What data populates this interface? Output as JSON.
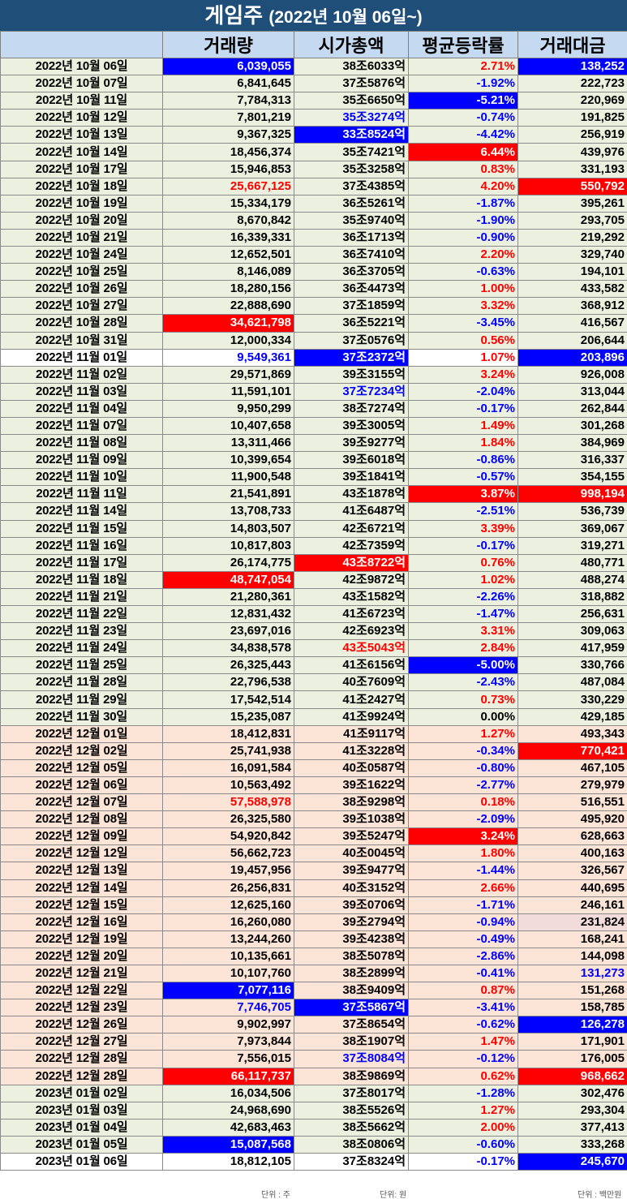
{
  "title": {
    "main": "게임주",
    "sub": "(2022년 10월 06일~)"
  },
  "headers": [
    "",
    "거래량",
    "시가총액",
    "평균등락률",
    "거래대금"
  ],
  "rows": [
    {
      "date": "2022년 10월 06일",
      "volume": "6,039,055",
      "mcap": "38조6033억",
      "change": "2.71%",
      "value": "138,252",
      "group": "oct",
      "vs": "hl-blue",
      "ms": "",
      "cs": "red-text",
      "ts": "hl-blue"
    },
    {
      "date": "2022년 10월 07일",
      "volume": "6,841,645",
      "mcap": "37조5876억",
      "change": "-1.92%",
      "value": "222,723",
      "group": "oct",
      "vs": "",
      "ms": "",
      "cs": "blue-text",
      "ts": ""
    },
    {
      "date": "2022년 10월 11일",
      "volume": "7,784,313",
      "mcap": "35조6650억",
      "change": "-5.21%",
      "value": "220,969",
      "group": "oct",
      "vs": "",
      "ms": "",
      "cs": "hl-blue",
      "ts": ""
    },
    {
      "date": "2022년 10월 12일",
      "volume": "7,801,219",
      "mcap": "35조3274억",
      "change": "-0.74%",
      "value": "191,825",
      "group": "oct",
      "vs": "",
      "ms": "blue-text",
      "cs": "blue-text",
      "ts": ""
    },
    {
      "date": "2022년 10월 13일",
      "volume": "9,367,325",
      "mcap": "33조8524억",
      "change": "-4.42%",
      "value": "256,919",
      "group": "oct",
      "vs": "",
      "ms": "hl-blue",
      "cs": "blue-text",
      "ts": ""
    },
    {
      "date": "2022년 10월 14일",
      "volume": "18,456,374",
      "mcap": "35조7421억",
      "change": "6.44%",
      "value": "439,976",
      "group": "oct",
      "vs": "",
      "ms": "",
      "cs": "hl-red",
      "ts": ""
    },
    {
      "date": "2022년 10월 17일",
      "volume": "15,946,853",
      "mcap": "35조3258억",
      "change": "0.83%",
      "value": "331,193",
      "group": "oct",
      "vs": "",
      "ms": "",
      "cs": "red-text",
      "ts": ""
    },
    {
      "date": "2022년 10월 18일",
      "volume": "25,667,125",
      "mcap": "37조4385억",
      "change": "4.20%",
      "value": "550,792",
      "group": "oct",
      "vs": "red-text",
      "ms": "",
      "cs": "red-text",
      "ts": "hl-red"
    },
    {
      "date": "2022년 10월 19일",
      "volume": "15,334,179",
      "mcap": "36조5261억",
      "change": "-1.87%",
      "value": "395,261",
      "group": "oct",
      "vs": "",
      "ms": "",
      "cs": "blue-text",
      "ts": ""
    },
    {
      "date": "2022년 10월 20일",
      "volume": "8,670,842",
      "mcap": "35조9740억",
      "change": "-1.90%",
      "value": "293,705",
      "group": "oct",
      "vs": "",
      "ms": "",
      "cs": "blue-text",
      "ts": ""
    },
    {
      "date": "2022년 10월 21일",
      "volume": "16,339,331",
      "mcap": "36조1713억",
      "change": "-0.90%",
      "value": "219,292",
      "group": "oct",
      "vs": "",
      "ms": "",
      "cs": "blue-text",
      "ts": ""
    },
    {
      "date": "2022년 10월 24일",
      "volume": "12,652,501",
      "mcap": "36조7410억",
      "change": "2.20%",
      "value": "329,740",
      "group": "oct",
      "vs": "",
      "ms": "",
      "cs": "red-text",
      "ts": ""
    },
    {
      "date": "2022년 10월 25일",
      "volume": "8,146,089",
      "mcap": "36조3705억",
      "change": "-0.63%",
      "value": "194,101",
      "group": "oct",
      "vs": "",
      "ms": "",
      "cs": "blue-text",
      "ts": ""
    },
    {
      "date": "2022년 10월 26일",
      "volume": "18,280,156",
      "mcap": "36조4473억",
      "change": "1.00%",
      "value": "433,582",
      "group": "oct",
      "vs": "",
      "ms": "",
      "cs": "red-text",
      "ts": ""
    },
    {
      "date": "2022년 10월 27일",
      "volume": "22,888,690",
      "mcap": "37조1859억",
      "change": "3.32%",
      "value": "368,912",
      "group": "oct",
      "vs": "",
      "ms": "",
      "cs": "red-text",
      "ts": ""
    },
    {
      "date": "2022년 10월 28일",
      "volume": "34,621,798",
      "mcap": "36조5221억",
      "change": "-3.45%",
      "value": "416,567",
      "group": "oct",
      "vs": "hl-red",
      "ms": "",
      "cs": "blue-text",
      "ts": ""
    },
    {
      "date": "2022년 10월 31일",
      "volume": "12,000,334",
      "mcap": "37조0576억",
      "change": "0.56%",
      "value": "206,644",
      "group": "oct",
      "vs": "",
      "ms": "",
      "cs": "red-text",
      "ts": ""
    },
    {
      "date": "2022년 11월 01일",
      "volume": "9,549,361",
      "mcap": "37조2372억",
      "change": "1.07%",
      "value": "203,896",
      "group": "white",
      "vs": "blue-text",
      "ms": "hl-blue",
      "cs": "red-text",
      "ts": "hl-blue"
    },
    {
      "date": "2022년 11월 02일",
      "volume": "29,571,869",
      "mcap": "39조3155억",
      "change": "3.24%",
      "value": "926,008",
      "group": "nov",
      "vs": "",
      "ms": "",
      "cs": "red-text",
      "ts": ""
    },
    {
      "date": "2022년 11월 03일",
      "volume": "11,591,101",
      "mcap": "37조7234억",
      "change": "-2.04%",
      "value": "313,044",
      "group": "nov",
      "vs": "",
      "ms": "blue-text",
      "cs": "blue-text",
      "ts": ""
    },
    {
      "date": "2022년 11월 04일",
      "volume": "9,950,299",
      "mcap": "38조7274억",
      "change": "-0.17%",
      "value": "262,844",
      "group": "nov",
      "vs": "",
      "ms": "",
      "cs": "blue-text",
      "ts": ""
    },
    {
      "date": "2022년 11월 07일",
      "volume": "10,407,658",
      "mcap": "39조3005억",
      "change": "1.49%",
      "value": "301,268",
      "group": "nov",
      "vs": "",
      "ms": "",
      "cs": "red-text",
      "ts": ""
    },
    {
      "date": "2022년 11월 08일",
      "volume": "13,311,466",
      "mcap": "39조9277억",
      "change": "1.84%",
      "value": "384,969",
      "group": "nov",
      "vs": "",
      "ms": "",
      "cs": "red-text",
      "ts": ""
    },
    {
      "date": "2022년 11월 09일",
      "volume": "10,399,654",
      "mcap": "39조6018억",
      "change": "-0.86%",
      "value": "316,337",
      "group": "nov",
      "vs": "",
      "ms": "",
      "cs": "blue-text",
      "ts": ""
    },
    {
      "date": "2022년 11월 10일",
      "volume": "11,900,548",
      "mcap": "39조1841억",
      "change": "-0.57%",
      "value": "354,155",
      "group": "nov",
      "vs": "",
      "ms": "",
      "cs": "blue-text",
      "ts": ""
    },
    {
      "date": "2022년 11월 11일",
      "volume": "21,541,891",
      "mcap": "43조1878억",
      "change": "3.87%",
      "value": "998,194",
      "group": "nov",
      "vs": "",
      "ms": "",
      "cs": "hl-red",
      "ts": "hl-red"
    },
    {
      "date": "2022년 11월 14일",
      "volume": "13,708,733",
      "mcap": "41조6487억",
      "change": "-2.51%",
      "value": "536,739",
      "group": "nov",
      "vs": "",
      "ms": "",
      "cs": "blue-text",
      "ts": ""
    },
    {
      "date": "2022년 11월 15일",
      "volume": "14,803,507",
      "mcap": "42조6721억",
      "change": "3.39%",
      "value": "369,067",
      "group": "nov",
      "vs": "",
      "ms": "",
      "cs": "red-text",
      "ts": ""
    },
    {
      "date": "2022년 11월 16일",
      "volume": "10,817,803",
      "mcap": "42조7359억",
      "change": "-0.17%",
      "value": "319,271",
      "group": "nov",
      "vs": "",
      "ms": "",
      "cs": "blue-text",
      "ts": ""
    },
    {
      "date": "2022년 11월 17일",
      "volume": "26,174,775",
      "mcap": "43조8722억",
      "change": "0.76%",
      "value": "480,771",
      "group": "nov",
      "vs": "",
      "ms": "hl-red",
      "cs": "red-text",
      "ts": ""
    },
    {
      "date": "2022년 11월 18일",
      "volume": "48,747,054",
      "mcap": "42조9872억",
      "change": "1.02%",
      "value": "488,274",
      "group": "nov",
      "vs": "hl-red",
      "ms": "",
      "cs": "red-text",
      "ts": ""
    },
    {
      "date": "2022년 11월 21일",
      "volume": "21,280,361",
      "mcap": "43조1582억",
      "change": "-2.26%",
      "value": "318,882",
      "group": "nov",
      "vs": "",
      "ms": "",
      "cs": "blue-text",
      "ts": ""
    },
    {
      "date": "2022년 11월 22일",
      "volume": "12,831,432",
      "mcap": "41조6723억",
      "change": "-1.47%",
      "value": "256,631",
      "group": "nov",
      "vs": "",
      "ms": "",
      "cs": "blue-text",
      "ts": ""
    },
    {
      "date": "2022년 11월 23일",
      "volume": "23,697,016",
      "mcap": "42조6923억",
      "change": "3.31%",
      "value": "309,063",
      "group": "nov",
      "vs": "",
      "ms": "",
      "cs": "red-text",
      "ts": ""
    },
    {
      "date": "2022년 11월 24일",
      "volume": "34,838,578",
      "mcap": "43조5043억",
      "change": "2.84%",
      "value": "417,959",
      "group": "nov",
      "vs": "",
      "ms": "red-text",
      "cs": "red-text",
      "ts": ""
    },
    {
      "date": "2022년 11월 25일",
      "volume": "26,325,443",
      "mcap": "41조6156억",
      "change": "-5.00%",
      "value": "330,766",
      "group": "nov",
      "vs": "",
      "ms": "",
      "cs": "hl-blue",
      "ts": ""
    },
    {
      "date": "2022년 11월 28일",
      "volume": "22,796,538",
      "mcap": "40조7609억",
      "change": "-2.43%",
      "value": "487,084",
      "group": "nov",
      "vs": "",
      "ms": "",
      "cs": "blue-text",
      "ts": ""
    },
    {
      "date": "2022년 11월 29일",
      "volume": "17,542,514",
      "mcap": "41조2427억",
      "change": "0.73%",
      "value": "330,229",
      "group": "nov",
      "vs": "",
      "ms": "",
      "cs": "red-text",
      "ts": ""
    },
    {
      "date": "2022년 11월 30일",
      "volume": "15,235,087",
      "mcap": "41조9924억",
      "change": "0.00%",
      "value": "429,185",
      "group": "nov",
      "vs": "",
      "ms": "",
      "cs": "",
      "ts": ""
    },
    {
      "date": "2022년 12월 01일",
      "volume": "18,412,831",
      "mcap": "41조9117억",
      "change": "1.27%",
      "value": "493,343",
      "group": "dec",
      "vs": "",
      "ms": "",
      "cs": "red-text",
      "ts": ""
    },
    {
      "date": "2022년 12월 02일",
      "volume": "25,741,938",
      "mcap": "41조3228억",
      "change": "-0.34%",
      "value": "770,421",
      "group": "dec",
      "vs": "",
      "ms": "",
      "cs": "blue-text",
      "ts": "hl-red"
    },
    {
      "date": "2022년 12월 05일",
      "volume": "16,091,584",
      "mcap": "40조0587억",
      "change": "-0.80%",
      "value": "467,105",
      "group": "dec",
      "vs": "",
      "ms": "",
      "cs": "blue-text",
      "ts": ""
    },
    {
      "date": "2022년 12월 06일",
      "volume": "10,563,492",
      "mcap": "39조1622억",
      "change": "-2.77%",
      "value": "279,979",
      "group": "dec",
      "vs": "",
      "ms": "",
      "cs": "blue-text",
      "ts": ""
    },
    {
      "date": "2022년 12월 07일",
      "volume": "57,588,978",
      "mcap": "38조9298억",
      "change": "0.18%",
      "value": "516,551",
      "group": "dec",
      "vs": "red-text",
      "ms": "",
      "cs": "red-text",
      "ts": ""
    },
    {
      "date": "2022년 12월 08일",
      "volume": "26,325,580",
      "mcap": "39조1038억",
      "change": "-2.09%",
      "value": "495,920",
      "group": "dec",
      "vs": "",
      "ms": "",
      "cs": "blue-text",
      "ts": ""
    },
    {
      "date": "2022년 12월 09일",
      "volume": "54,920,842",
      "mcap": "39조5247억",
      "change": "3.24%",
      "value": "628,663",
      "group": "dec",
      "vs": "",
      "ms": "",
      "cs": "hl-red",
      "ts": ""
    },
    {
      "date": "2022년 12월 12일",
      "volume": "56,662,723",
      "mcap": "40조0045억",
      "change": "1.80%",
      "value": "400,163",
      "group": "dec",
      "vs": "",
      "ms": "",
      "cs": "red-text",
      "ts": ""
    },
    {
      "date": "2022년 12월 13일",
      "volume": "19,457,956",
      "mcap": "39조9477억",
      "change": "-1.44%",
      "value": "326,567",
      "group": "dec",
      "vs": "",
      "ms": "",
      "cs": "blue-text",
      "ts": ""
    },
    {
      "date": "2022년 12월 14일",
      "volume": "26,256,831",
      "mcap": "40조3152억",
      "change": "2.66%",
      "value": "440,695",
      "group": "dec",
      "vs": "",
      "ms": "",
      "cs": "red-text",
      "ts": ""
    },
    {
      "date": "2022년 12월 15일",
      "volume": "12,625,160",
      "mcap": "39조0706억",
      "change": "-1.71%",
      "value": "246,161",
      "group": "dec",
      "vs": "",
      "ms": "",
      "cs": "blue-text",
      "ts": ""
    },
    {
      "date": "2022년 12월 16일",
      "volume": "16,260,080",
      "mcap": "39조2794억",
      "change": "-0.94%",
      "value": "231,824",
      "group": "dec",
      "vs": "",
      "ms": "",
      "cs": "blue-text",
      "ts": "hl-pink"
    },
    {
      "date": "2022년 12월 19일",
      "volume": "13,244,260",
      "mcap": "39조4238억",
      "change": "-0.49%",
      "value": "168,241",
      "group": "dec",
      "vs": "",
      "ms": "",
      "cs": "blue-text",
      "ts": ""
    },
    {
      "date": "2022년 12월 20일",
      "volume": "10,135,661",
      "mcap": "38조5078억",
      "change": "-2.86%",
      "value": "144,098",
      "group": "dec",
      "vs": "",
      "ms": "",
      "cs": "blue-text",
      "ts": ""
    },
    {
      "date": "2022년 12월 21일",
      "volume": "10,107,760",
      "mcap": "38조2899억",
      "change": "-0.41%",
      "value": "131,273",
      "group": "dec",
      "vs": "",
      "ms": "",
      "cs": "blue-text",
      "ts": "blue-text"
    },
    {
      "date": "2022년 12월 22일",
      "volume": "7,077,116",
      "mcap": "38조9409억",
      "change": "0.87%",
      "value": "151,268",
      "group": "dec",
      "vs": "hl-blue",
      "ms": "",
      "cs": "red-text",
      "ts": ""
    },
    {
      "date": "2022년 12월 23일",
      "volume": "7,746,705",
      "mcap": "37조5867억",
      "change": "-3.41%",
      "value": "158,785",
      "group": "dec",
      "vs": "blue-text",
      "ms": "hl-blue",
      "cs": "blue-text",
      "ts": ""
    },
    {
      "date": "2022년 12월 26일",
      "volume": "9,902,997",
      "mcap": "37조8654억",
      "change": "-0.62%",
      "value": "126,278",
      "group": "dec",
      "vs": "",
      "ms": "",
      "cs": "blue-text",
      "ts": "hl-blue"
    },
    {
      "date": "2022년 12월 27일",
      "volume": "7,973,844",
      "mcap": "38조1907억",
      "change": "1.47%",
      "value": "171,901",
      "group": "dec",
      "vs": "",
      "ms": "",
      "cs": "red-text",
      "ts": ""
    },
    {
      "date": "2022년 12월 28일",
      "volume": "7,556,015",
      "mcap": "37조8084억",
      "change": "-0.12%",
      "value": "176,005",
      "group": "dec",
      "vs": "",
      "ms": "blue-text",
      "cs": "blue-text",
      "ts": ""
    },
    {
      "date": "2022년 12월 28일",
      "volume": "66,117,737",
      "mcap": "38조9869억",
      "change": "0.62%",
      "value": "968,662",
      "group": "dec",
      "vs": "hl-red",
      "ms": "",
      "cs": "red-text",
      "ts": "hl-red"
    },
    {
      "date": "2023년 01월 02일",
      "volume": "16,034,506",
      "mcap": "37조8017억",
      "change": "-1.28%",
      "value": "302,476",
      "group": "jan",
      "vs": "",
      "ms": "",
      "cs": "blue-text",
      "ts": ""
    },
    {
      "date": "2023년 01월 03일",
      "volume": "24,968,690",
      "mcap": "38조5526억",
      "change": "1.27%",
      "value": "293,304",
      "group": "jan",
      "vs": "",
      "ms": "",
      "cs": "red-text",
      "ts": ""
    },
    {
      "date": "2023년 01월 04일",
      "volume": "42,683,463",
      "mcap": "38조5662억",
      "change": "2.00%",
      "value": "377,413",
      "group": "jan",
      "vs": "",
      "ms": "",
      "cs": "red-text",
      "ts": ""
    },
    {
      "date": "2023년 01월 05일",
      "volume": "15,087,568",
      "mcap": "38조0806억",
      "change": "-0.60%",
      "value": "333,268",
      "group": "jan",
      "vs": "hl-blue",
      "ms": "",
      "cs": "blue-text",
      "ts": ""
    },
    {
      "date": "2023년 01월 06일",
      "volume": "18,812,105",
      "mcap": "37조8324억",
      "change": "-0.17%",
      "value": "245,670",
      "group": "last",
      "vs": "",
      "ms": "",
      "cs": "blue-text",
      "ts": "hl-blue"
    }
  ],
  "footer": {
    "unit_volume": "단위 : 주",
    "unit_mcap": "단위: 원",
    "unit_value": "단위 : 백만원"
  }
}
